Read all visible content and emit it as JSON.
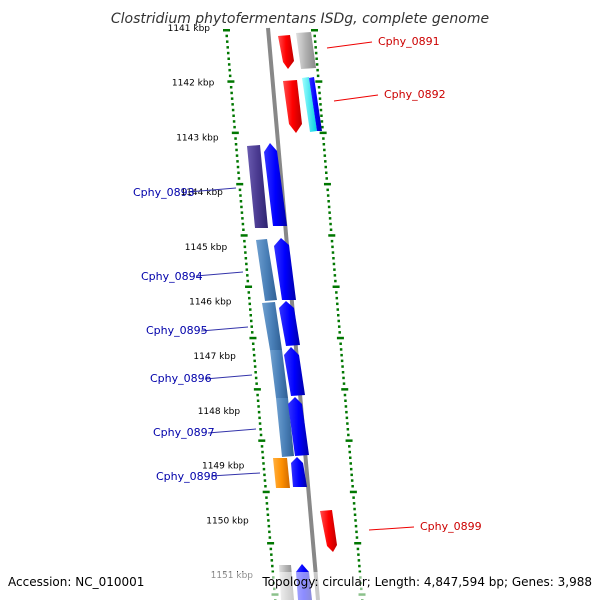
{
  "title": "Clostridium phytofermentans ISDg, complete genome",
  "footer": {
    "accession": "Accession: NC_010001",
    "summary": "Topology: circular; Length: 4,847,594 bp; Genes: 3,988"
  },
  "ticks": [
    "1141 kbp",
    "1142 kbp",
    "1143 kbp",
    "1144 kbp",
    "1145 kbp",
    "1146 kbp",
    "1147 kbp",
    "1148 kbp",
    "1149 kbp",
    "1150 kbp",
    "1151 kbp"
  ],
  "genes": [
    {
      "name": "Cphy_0891",
      "strand": "plus",
      "color": "#cc0000"
    },
    {
      "name": "Cphy_0892",
      "strand": "plus",
      "color": "#cc0000"
    },
    {
      "name": "Cphy_0893",
      "strand": "minus",
      "color": "#0000aa"
    },
    {
      "name": "Cphy_0894",
      "strand": "minus",
      "color": "#0000aa"
    },
    {
      "name": "Cphy_0895",
      "strand": "minus",
      "color": "#0000aa"
    },
    {
      "name": "Cphy_0896",
      "strand": "minus",
      "color": "#0000aa"
    },
    {
      "name": "Cphy_0897",
      "strand": "minus",
      "color": "#0000aa"
    },
    {
      "name": "Cphy_0898",
      "strand": "minus",
      "color": "#0000aa"
    },
    {
      "name": "Cphy_0899",
      "strand": "plus",
      "color": "#cc0000"
    }
  ],
  "colors": {
    "backbone": "#888888",
    "plus_gene": "#ee0000",
    "minus_gene": "#0000ee",
    "minus_cog": "#3d6fa8",
    "grid_dots": "#007700"
  }
}
